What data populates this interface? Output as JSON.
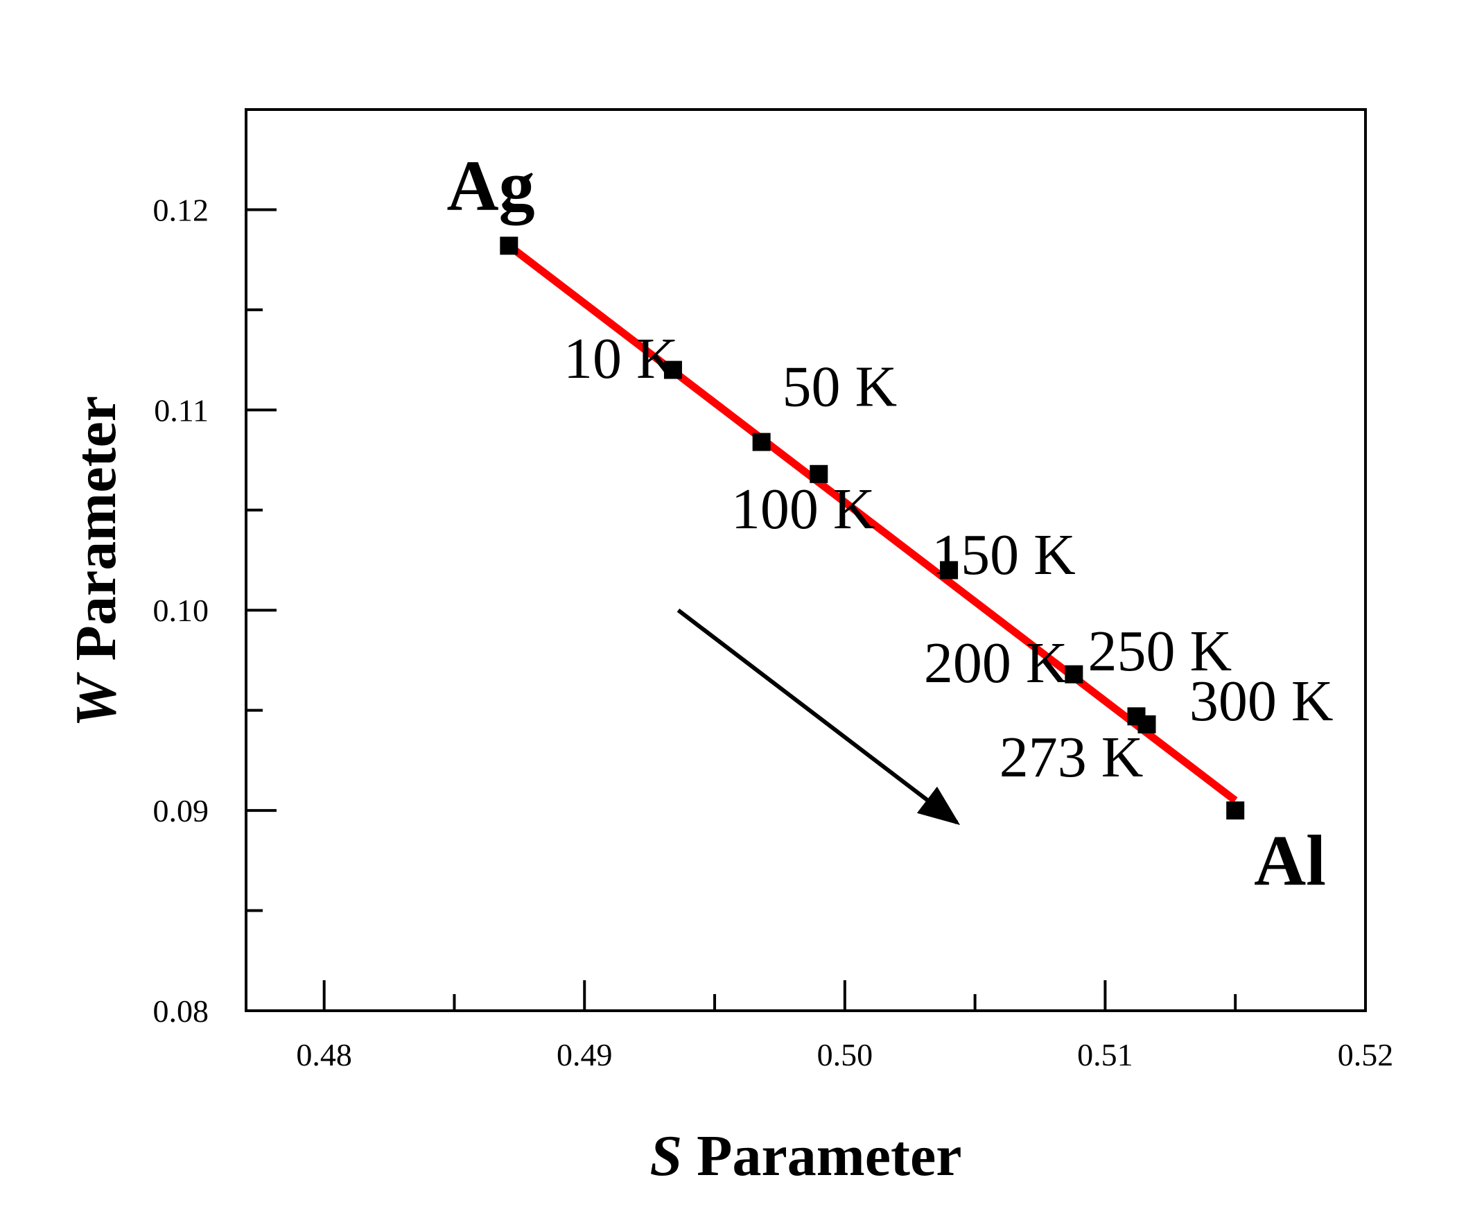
{
  "chart_data": {
    "type": "scatter",
    "title": "",
    "xlabel": {
      "var": "S",
      "text": " Parameter"
    },
    "ylabel": {
      "var": "W",
      "text": " Parameter"
    },
    "xlim": [
      0.477,
      0.52
    ],
    "ylim": [
      0.08,
      0.125
    ],
    "xticks": [
      {
        "value": 0.48,
        "label": "0.48"
      },
      {
        "value": 0.49,
        "label": "0.49"
      },
      {
        "value": 0.5,
        "label": "0.50"
      },
      {
        "value": 0.51,
        "label": "0.51"
      },
      {
        "value": 0.52,
        "label": "0.52"
      }
    ],
    "xminor": [
      0.485,
      0.495,
      0.505,
      0.515
    ],
    "yticks": [
      {
        "value": 0.08,
        "label": "0.08"
      },
      {
        "value": 0.09,
        "label": "0.09"
      },
      {
        "value": 0.1,
        "label": "0.10"
      },
      {
        "value": 0.11,
        "label": "0.11"
      },
      {
        "value": 0.12,
        "label": "0.12"
      }
    ],
    "yminor": [
      0.085,
      0.095,
      0.105,
      0.115
    ],
    "points": [
      {
        "x": 0.4871,
        "y": 0.1182
      },
      {
        "x": 0.4934,
        "y": 0.112
      },
      {
        "x": 0.4968,
        "y": 0.1084
      },
      {
        "x": 0.499,
        "y": 0.1068
      },
      {
        "x": 0.504,
        "y": 0.102
      },
      {
        "x": 0.5088,
        "y": 0.0968
      },
      {
        "x": 0.5112,
        "y": 0.0947
      },
      {
        "x": 0.5116,
        "y": 0.0943
      },
      {
        "x": 0.515,
        "y": 0.09
      }
    ],
    "fit_line": {
      "x": [
        0.4871,
        0.515
      ],
      "y": [
        0.1182,
        0.0905
      ],
      "color": "#ff0000"
    },
    "arrow": {
      "x": [
        0.4936,
        0.5043
      ],
      "y": [
        0.1,
        0.0894
      ],
      "color": "#000000"
    },
    "point_labels": [
      {
        "text": "10 K",
        "x": 0.4914,
        "y": 0.1116
      },
      {
        "text": "50 K",
        "x": 0.4998,
        "y": 0.1102
      },
      {
        "text": "100 K",
        "x": 0.4984,
        "y": 0.1041
      },
      {
        "text": "150 K",
        "x": 0.5061,
        "y": 0.1018
      },
      {
        "text": "200 K",
        "x": 0.5058,
        "y": 0.0964
      },
      {
        "text": "250 K",
        "x": 0.5121,
        "y": 0.097
      },
      {
        "text": "300 K",
        "x": 0.516,
        "y": 0.0945
      },
      {
        "text": "273 K",
        "x": 0.5087,
        "y": 0.0917
      }
    ],
    "end_labels": [
      {
        "text": "Ag",
        "x": 0.4864,
        "y": 0.12
      },
      {
        "text": "Al",
        "x": 0.5171,
        "y": 0.0863
      }
    ],
    "marker_color": "#000000",
    "grid": false
  }
}
